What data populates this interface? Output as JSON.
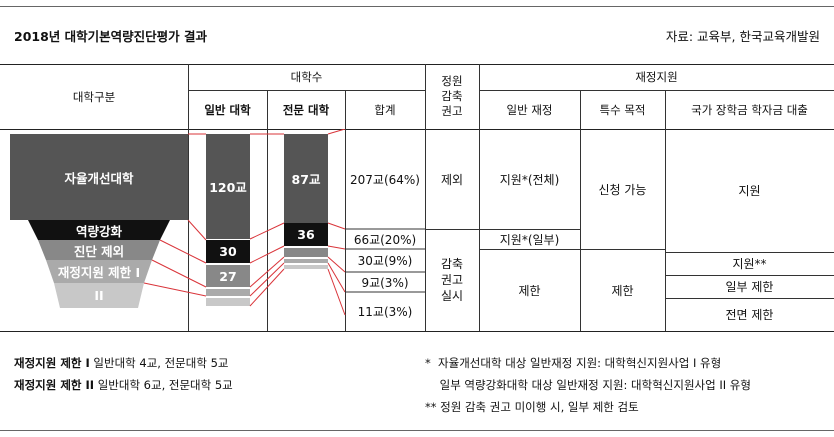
{
  "title": "2018년 대학기본역량진단평가 결과",
  "source": "자료: 교육부, 한국교육개발원",
  "headers": {
    "category": "대학구분",
    "count_group": "대학수",
    "general": "일반 대학",
    "junior": "전문 대학",
    "total": "합계",
    "quota": "정원\n감축\n권고",
    "funding_group": "재정지원",
    "general_funding": "일반 재정",
    "special_purpose": "특수 목적",
    "scholarship": "국가 장학금 학자금 대출"
  },
  "categories": {
    "autonomous": "자율개선대학",
    "strengthen": "역량강화",
    "excluded": "진단 제외",
    "limit1": "재정지원 제한 I",
    "limit2": "II"
  },
  "bars": {
    "general_top": "120교",
    "general_mid": "30",
    "general_low": "27",
    "junior_top": "87교",
    "junior_mid": "36"
  },
  "totals": [
    "207교(64%)",
    "66교(20%)",
    "30교(9%)",
    "9교(3%)",
    "11교(3%)"
  ],
  "quota": {
    "exempt": "제외",
    "applied": "감축\n권고\n실시"
  },
  "general_funding": {
    "full": "지원*(전체)",
    "partial": "지원*(일부)",
    "limited": "제한"
  },
  "special_purpose": {
    "apply": "신청 가능",
    "limited": "제한"
  },
  "scholarship": {
    "support": "지원",
    "support2": "지원**",
    "partial": "일부 제한",
    "full": "전면 제한"
  },
  "footnotes_left": [
    {
      "bold": "재정지원 제한 I",
      "text": " 일반대학 4교, 전문대학 5교"
    },
    {
      "bold": "재정지원 제한 II",
      "text": " 일반대학 6교, 전문대학 5교"
    }
  ],
  "footnotes_right": [
    "*  자율개선대학 대상 일반재정 지원: 대학혁신지원사업 I 유형",
    "    일부 역량강화대학 대상 일반재정 지원: 대학혁신지원사업 II 유형",
    "** 정원 감축 권고 미이행 시, 일부 제한 검토"
  ],
  "colors": {
    "dark": "#555555",
    "black": "#111111",
    "mid": "#888888",
    "light": "#aaaaaa",
    "lighter": "#c8c8c8",
    "red": "#d9343a"
  }
}
